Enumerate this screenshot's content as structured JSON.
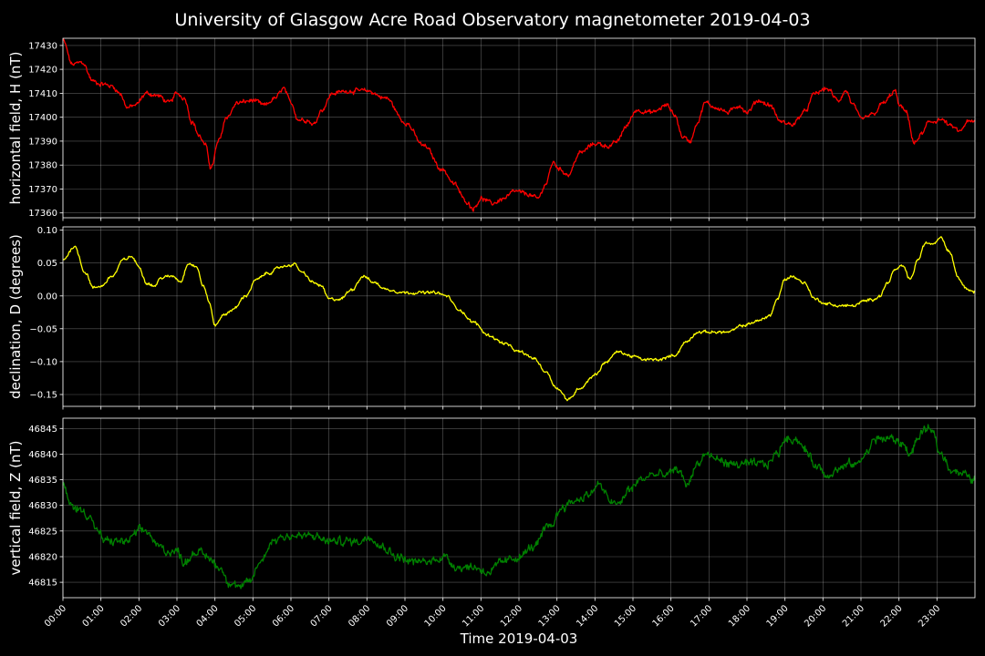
{
  "chart_data": {
    "type": "line",
    "title": "University of Glasgow Acre Road Observatory magnetometer 2019-04-03",
    "xlabel": "Time 2019-04-03",
    "x_ticks": [
      "00:00",
      "01:00",
      "02:00",
      "03:00",
      "04:00",
      "05:00",
      "06:00",
      "07:00",
      "08:00",
      "09:00",
      "10:00",
      "11:00",
      "12:00",
      "13:00",
      "14:00",
      "15:00",
      "16:00",
      "17:00",
      "18:00",
      "19:00",
      "20:00",
      "21:00",
      "22:00",
      "23:00"
    ],
    "x_range_hours": [
      0,
      24
    ],
    "grid": true,
    "panels": [
      {
        "ylabel": "horizontal field, H (nT)",
        "color": "#ff0000",
        "ylim": [
          17358,
          17433
        ],
        "yticks": [
          17360,
          17370,
          17380,
          17390,
          17400,
          17410,
          17420,
          17430
        ],
        "ytick_labels": [
          "17360",
          "17370",
          "17380",
          "17390",
          "17400",
          "17410",
          "17420",
          "17430"
        ],
        "noise": 0.8,
        "series": [
          [
            0,
            17432
          ],
          [
            0.25,
            17422
          ],
          [
            0.5,
            17423
          ],
          [
            0.8,
            17415
          ],
          [
            1.0,
            17414
          ],
          [
            1.3,
            17413
          ],
          [
            1.5,
            17410
          ],
          [
            1.7,
            17404
          ],
          [
            1.9,
            17405
          ],
          [
            2.2,
            17410
          ],
          [
            2.5,
            17409
          ],
          [
            2.8,
            17406
          ],
          [
            3.0,
            17410
          ],
          [
            3.2,
            17408
          ],
          [
            3.4,
            17398
          ],
          [
            3.6,
            17392
          ],
          [
            3.75,
            17388
          ],
          [
            3.9,
            17379
          ],
          [
            4.1,
            17390
          ],
          [
            4.3,
            17400
          ],
          [
            4.6,
            17406
          ],
          [
            5.0,
            17407
          ],
          [
            5.3,
            17405
          ],
          [
            5.6,
            17408
          ],
          [
            5.8,
            17412
          ],
          [
            6.0,
            17406
          ],
          [
            6.2,
            17399
          ],
          [
            6.4,
            17399
          ],
          [
            6.6,
            17397
          ],
          [
            6.8,
            17403
          ],
          [
            7.1,
            17410
          ],
          [
            7.5,
            17411
          ],
          [
            8.0,
            17411
          ],
          [
            8.5,
            17408
          ],
          [
            9.0,
            17398
          ],
          [
            9.5,
            17388
          ],
          [
            10.0,
            17378
          ],
          [
            10.3,
            17372
          ],
          [
            10.6,
            17365
          ],
          [
            10.8,
            17362
          ],
          [
            11.0,
            17366
          ],
          [
            11.3,
            17364
          ],
          [
            11.6,
            17366
          ],
          [
            11.9,
            17369
          ],
          [
            12.2,
            17368
          ],
          [
            12.5,
            17366
          ],
          [
            12.7,
            17372
          ],
          [
            12.9,
            17381
          ],
          [
            13.1,
            17378
          ],
          [
            13.3,
            17376
          ],
          [
            13.6,
            17385
          ],
          [
            14.0,
            17389
          ],
          [
            14.4,
            17388
          ],
          [
            14.6,
            17390
          ],
          [
            14.8,
            17396
          ],
          [
            15.1,
            17403
          ],
          [
            15.5,
            17402
          ],
          [
            15.9,
            17405
          ],
          [
            16.1,
            17401
          ],
          [
            16.3,
            17392
          ],
          [
            16.5,
            17390
          ],
          [
            16.7,
            17398
          ],
          [
            16.9,
            17406
          ],
          [
            17.2,
            17404
          ],
          [
            17.5,
            17402
          ],
          [
            17.8,
            17405
          ],
          [
            18.0,
            17402
          ],
          [
            18.3,
            17407
          ],
          [
            18.6,
            17405
          ],
          [
            18.9,
            17398
          ],
          [
            19.2,
            17397
          ],
          [
            19.5,
            17402
          ],
          [
            19.8,
            17410
          ],
          [
            20.1,
            17412
          ],
          [
            20.4,
            17407
          ],
          [
            20.6,
            17411
          ],
          [
            20.8,
            17405
          ],
          [
            21.0,
            17399
          ],
          [
            21.3,
            17401
          ],
          [
            21.6,
            17406
          ],
          [
            21.9,
            17411
          ],
          [
            22.0,
            17405
          ],
          [
            22.2,
            17402
          ],
          [
            22.4,
            17389
          ],
          [
            22.6,
            17393
          ],
          [
            22.8,
            17398
          ],
          [
            23.1,
            17399
          ],
          [
            23.4,
            17396
          ],
          [
            23.6,
            17394
          ],
          [
            23.8,
            17398
          ],
          [
            24,
            17398
          ]
        ]
      },
      {
        "ylabel": "declination, D (degrees)",
        "color": "#ffff00",
        "ylim": [
          -0.168,
          0.105
        ],
        "yticks": [
          -0.15,
          -0.1,
          -0.05,
          0.0,
          0.05,
          0.1
        ],
        "ytick_labels": [
          "−0.15",
          "−0.10",
          "−0.05",
          "0.00",
          "0.05",
          "0.10"
        ],
        "noise": 0.0018,
        "series": [
          [
            0,
            0.055
          ],
          [
            0.3,
            0.075
          ],
          [
            0.6,
            0.035
          ],
          [
            0.8,
            0.012
          ],
          [
            1.0,
            0.015
          ],
          [
            1.3,
            0.03
          ],
          [
            1.6,
            0.055
          ],
          [
            1.8,
            0.06
          ],
          [
            2.0,
            0.045
          ],
          [
            2.2,
            0.02
          ],
          [
            2.4,
            0.015
          ],
          [
            2.6,
            0.028
          ],
          [
            2.9,
            0.03
          ],
          [
            3.1,
            0.022
          ],
          [
            3.3,
            0.05
          ],
          [
            3.5,
            0.045
          ],
          [
            3.7,
            0.015
          ],
          [
            3.85,
            -0.01
          ],
          [
            4.0,
            -0.045
          ],
          [
            4.2,
            -0.03
          ],
          [
            4.5,
            -0.02
          ],
          [
            4.8,
            0.0
          ],
          [
            5.1,
            0.025
          ],
          [
            5.4,
            0.035
          ],
          [
            5.8,
            0.045
          ],
          [
            6.1,
            0.048
          ],
          [
            6.3,
            0.035
          ],
          [
            6.6,
            0.02
          ],
          [
            6.8,
            0.015
          ],
          [
            7.0,
            -0.005
          ],
          [
            7.3,
            -0.005
          ],
          [
            7.6,
            0.01
          ],
          [
            7.9,
            0.03
          ],
          [
            8.2,
            0.02
          ],
          [
            8.5,
            0.01
          ],
          [
            9.0,
            0.005
          ],
          [
            9.5,
            0.005
          ],
          [
            9.8,
            0.005
          ],
          [
            10.1,
            0.0
          ],
          [
            10.4,
            -0.02
          ],
          [
            10.8,
            -0.04
          ],
          [
            11.2,
            -0.06
          ],
          [
            11.6,
            -0.072
          ],
          [
            12.0,
            -0.085
          ],
          [
            12.4,
            -0.095
          ],
          [
            12.7,
            -0.115
          ],
          [
            13.0,
            -0.14
          ],
          [
            13.3,
            -0.158
          ],
          [
            13.6,
            -0.14
          ],
          [
            14.0,
            -0.12
          ],
          [
            14.3,
            -0.1
          ],
          [
            14.6,
            -0.085
          ],
          [
            15.0,
            -0.092
          ],
          [
            15.3,
            -0.097
          ],
          [
            15.7,
            -0.097
          ],
          [
            16.1,
            -0.09
          ],
          [
            16.4,
            -0.07
          ],
          [
            16.7,
            -0.055
          ],
          [
            17.1,
            -0.055
          ],
          [
            17.5,
            -0.055
          ],
          [
            17.9,
            -0.045
          ],
          [
            18.3,
            -0.038
          ],
          [
            18.6,
            -0.03
          ],
          [
            18.8,
            -0.005
          ],
          [
            19.0,
            0.025
          ],
          [
            19.2,
            0.03
          ],
          [
            19.5,
            0.02
          ],
          [
            19.8,
            -0.005
          ],
          [
            20.1,
            -0.012
          ],
          [
            20.4,
            -0.015
          ],
          [
            20.8,
            -0.015
          ],
          [
            21.1,
            -0.008
          ],
          [
            21.3,
            -0.005
          ],
          [
            21.5,
            0.0
          ],
          [
            21.7,
            0.02
          ],
          [
            21.9,
            0.04
          ],
          [
            22.1,
            0.045
          ],
          [
            22.3,
            0.025
          ],
          [
            22.5,
            0.055
          ],
          [
            22.7,
            0.08
          ],
          [
            22.9,
            0.08
          ],
          [
            23.1,
            0.09
          ],
          [
            23.3,
            0.07
          ],
          [
            23.6,
            0.025
          ],
          [
            23.8,
            0.01
          ],
          [
            24,
            0.006
          ]
        ]
      },
      {
        "ylabel": "vertical field, Z (nT)",
        "color": "#008000",
        "ylim": [
          46812,
          46847
        ],
        "yticks": [
          46815,
          46820,
          46825,
          46830,
          46835,
          46840,
          46845
        ],
        "ytick_labels": [
          "46815",
          "46820",
          "46825",
          "46830",
          "46835",
          "46840",
          "46845"
        ],
        "noise": 0.7,
        "series": [
          [
            0,
            46834
          ],
          [
            0.2,
            46830
          ],
          [
            0.5,
            46829
          ],
          [
            0.7,
            46828
          ],
          [
            0.9,
            46825
          ],
          [
            1.1,
            46823
          ],
          [
            1.4,
            46823
          ],
          [
            1.7,
            46823
          ],
          [
            2.0,
            46825
          ],
          [
            2.2,
            46825
          ],
          [
            2.5,
            46822
          ],
          [
            2.8,
            46821
          ],
          [
            3.0,
            46821
          ],
          [
            3.2,
            46819
          ],
          [
            3.5,
            46821
          ],
          [
            3.8,
            46820
          ],
          [
            4.1,
            46818
          ],
          [
            4.4,
            46815
          ],
          [
            4.7,
            46814
          ],
          [
            4.9,
            46815
          ],
          [
            5.2,
            46819
          ],
          [
            5.5,
            46823
          ],
          [
            5.8,
            46824
          ],
          [
            6.2,
            46824
          ],
          [
            6.6,
            46824
          ],
          [
            7.0,
            46823
          ],
          [
            7.4,
            46823
          ],
          [
            7.8,
            46823
          ],
          [
            8.1,
            46824
          ],
          [
            8.4,
            46822
          ],
          [
            8.8,
            46820
          ],
          [
            9.2,
            46819
          ],
          [
            9.6,
            46819
          ],
          [
            10.0,
            46820
          ],
          [
            10.4,
            46818
          ],
          [
            10.8,
            46818
          ],
          [
            11.2,
            46817
          ],
          [
            11.6,
            46819
          ],
          [
            12.0,
            46820
          ],
          [
            12.4,
            46822
          ],
          [
            12.8,
            46826
          ],
          [
            13.2,
            46830
          ],
          [
            13.5,
            46831
          ],
          [
            13.8,
            46832
          ],
          [
            14.1,
            46834
          ],
          [
            14.4,
            46831
          ],
          [
            14.6,
            46830
          ],
          [
            14.9,
            46833
          ],
          [
            15.2,
            46835
          ],
          [
            15.5,
            46836
          ],
          [
            15.9,
            46836
          ],
          [
            16.2,
            46837
          ],
          [
            16.4,
            46834
          ],
          [
            16.7,
            46838
          ],
          [
            16.9,
            46840
          ],
          [
            17.2,
            46839
          ],
          [
            17.6,
            46838
          ],
          [
            17.9,
            46838
          ],
          [
            18.2,
            46838
          ],
          [
            18.5,
            46838
          ],
          [
            18.8,
            46840
          ],
          [
            19.0,
            46843
          ],
          [
            19.3,
            46843
          ],
          [
            19.5,
            46841
          ],
          [
            19.8,
            46838
          ],
          [
            20.1,
            46836
          ],
          [
            20.4,
            46837
          ],
          [
            20.7,
            46838
          ],
          [
            20.9,
            46838
          ],
          [
            21.1,
            46840
          ],
          [
            21.4,
            46843
          ],
          [
            21.8,
            46843
          ],
          [
            22.1,
            46842
          ],
          [
            22.3,
            46840
          ],
          [
            22.5,
            46843
          ],
          [
            22.7,
            46845
          ],
          [
            22.9,
            46844
          ],
          [
            23.1,
            46840
          ],
          [
            23.4,
            46837
          ],
          [
            23.7,
            46836
          ],
          [
            24,
            46835
          ]
        ]
      }
    ]
  }
}
